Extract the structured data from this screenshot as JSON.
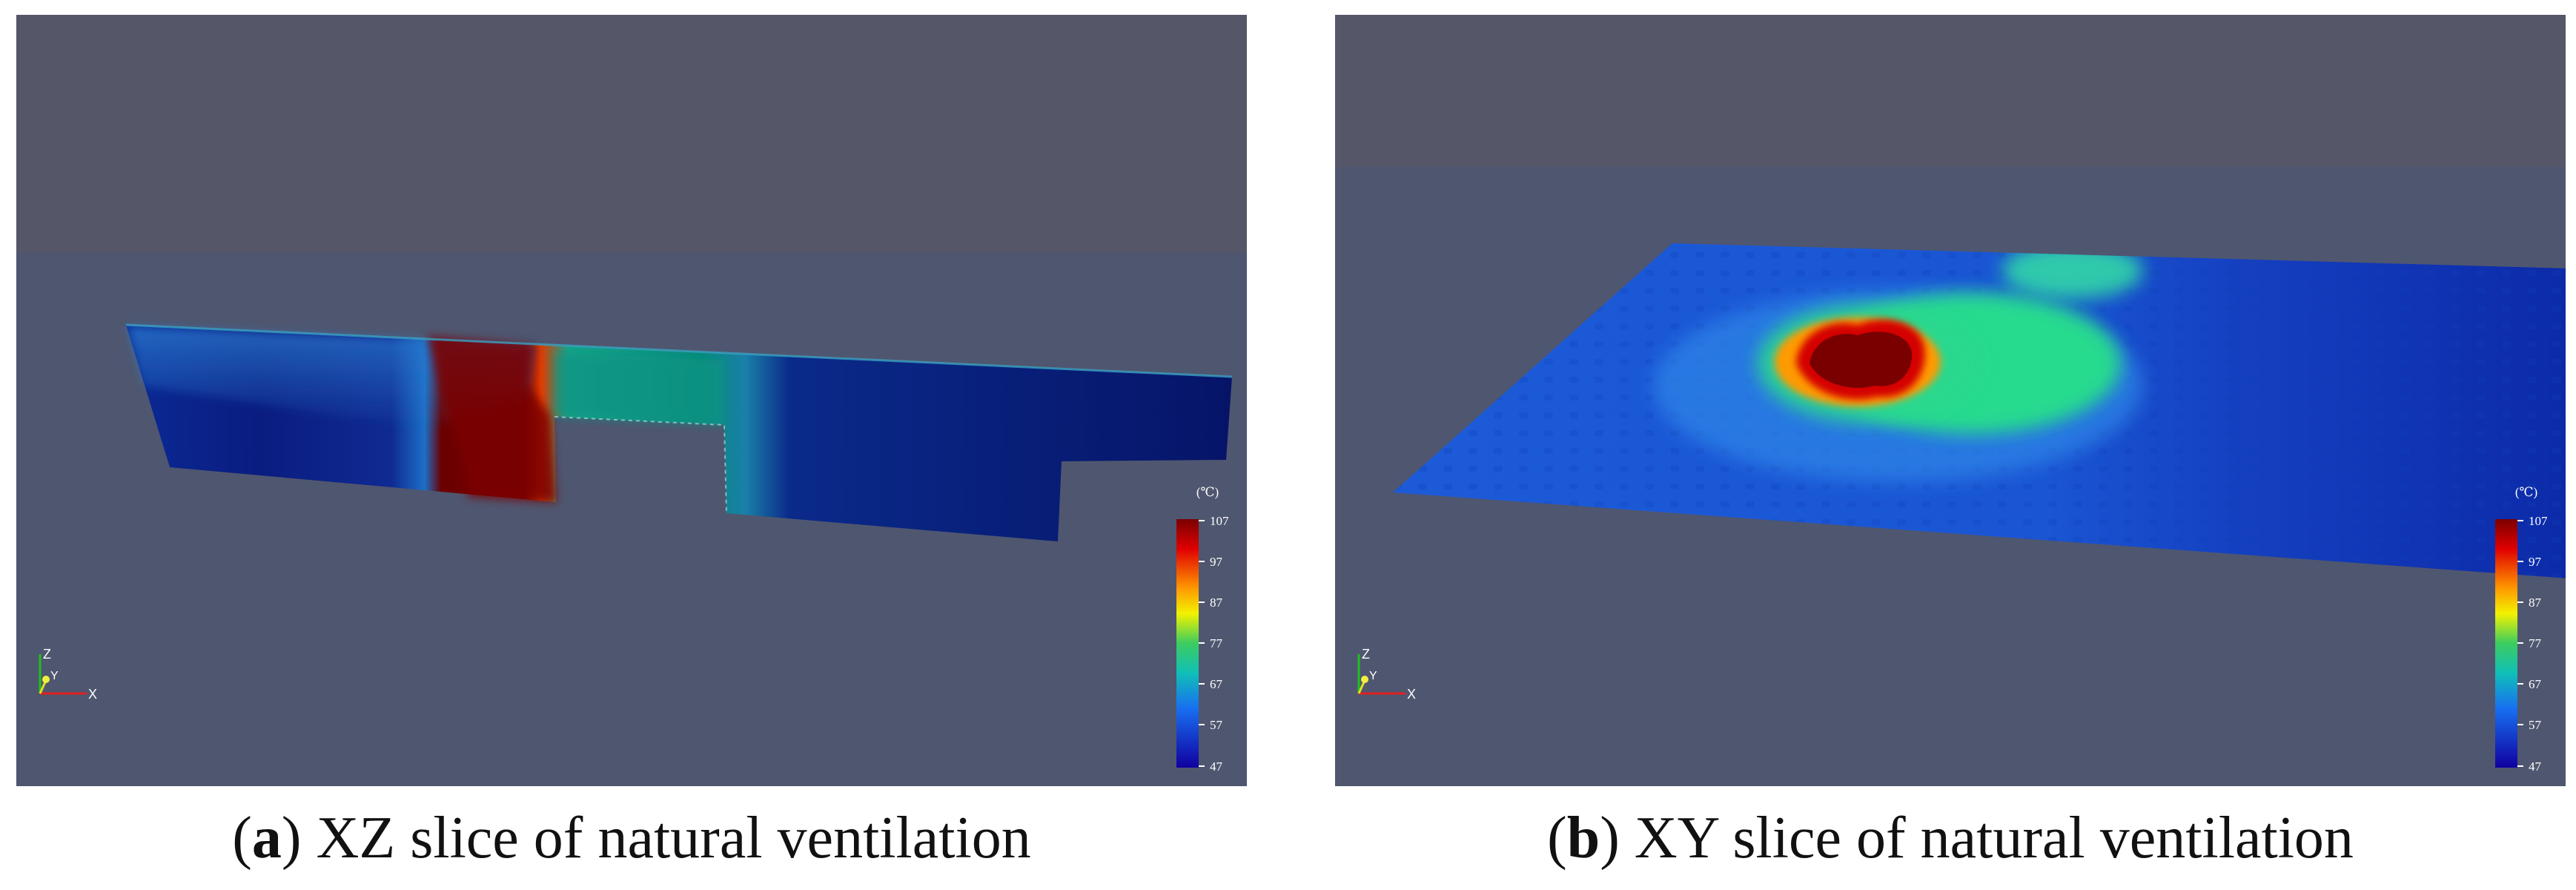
{
  "panels": [
    {
      "id": "a",
      "caption": {
        "letter": "a",
        "text": "XZ slice of natural ventilation"
      },
      "colorbar": {
        "unit": "(℃)",
        "ticks": [
          "107",
          "97",
          "87",
          "77",
          "67",
          "57",
          "47"
        ]
      },
      "axes_triad": {
        "x": "X",
        "y": "Y",
        "z": "Z"
      }
    },
    {
      "id": "b",
      "caption": {
        "letter": "b",
        "text": "XY slice of natural ventilation"
      },
      "colorbar": {
        "unit": "(℃)",
        "ticks": [
          "107",
          "97",
          "87",
          "77",
          "67",
          "57",
          "47"
        ]
      },
      "axes_triad": {
        "x": "X",
        "y": "Y",
        "z": "Z"
      }
    }
  ],
  "colors": {
    "background_top": "#555769",
    "background_bottom": "#4f566f",
    "cold": "#0a1870",
    "hot": "#7a0000"
  }
}
